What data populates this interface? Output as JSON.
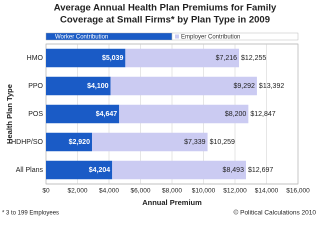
{
  "chart_data": {
    "type": "stacked-barh",
    "title": [
      "Average Annual Health Plan Premiums for Family",
      "Coverage at Small Firms* by Plan Type in 2009"
    ],
    "x_label": "Annual Premium",
    "y_label": "Health Plan Type",
    "categories": [
      "HMO",
      "PPO",
      "POS",
      "HDHP/SO",
      "All Plans"
    ],
    "series": [
      {
        "name": "Worker Contribution",
        "color": "#1a5bc6",
        "values": [
          5039,
          4100,
          4647,
          2920,
          4204
        ],
        "value_labels": [
          "$5,039",
          "$4,100",
          "$4,647",
          "$2,920",
          "$4,204"
        ]
      },
      {
        "name": "Employer Contribution",
        "color": "#cbcbf2",
        "values": [
          7216,
          9292,
          8200,
          7339,
          8493
        ],
        "value_labels": [
          "$7,216",
          "$9,292",
          "$8,200",
          "$7,339",
          "$8,493"
        ]
      }
    ],
    "totals": [
      12255,
      13392,
      12847,
      10259,
      12697
    ],
    "total_labels": [
      "$12,255",
      "$13,392",
      "$12,847",
      "$10,259",
      "$12,697"
    ],
    "xlim": [
      0,
      16000
    ],
    "xticks": [
      {
        "value": 0,
        "label": "$0"
      },
      {
        "value": 2000,
        "label": "$2,000"
      },
      {
        "value": 4000,
        "label": "$4,000"
      },
      {
        "value": 6000,
        "label": "$6,000"
      },
      {
        "value": 8000,
        "label": "$8,000"
      },
      {
        "value": 10000,
        "label": "$10,000"
      },
      {
        "value": 12000,
        "label": "$12,000"
      },
      {
        "value": 14000,
        "label": "$14,000"
      },
      {
        "value": 16000,
        "label": "$16,000"
      }
    ],
    "grid": true,
    "footnote": "* 3 to 199 Employees",
    "credit": "© Political Calculations 2010"
  }
}
